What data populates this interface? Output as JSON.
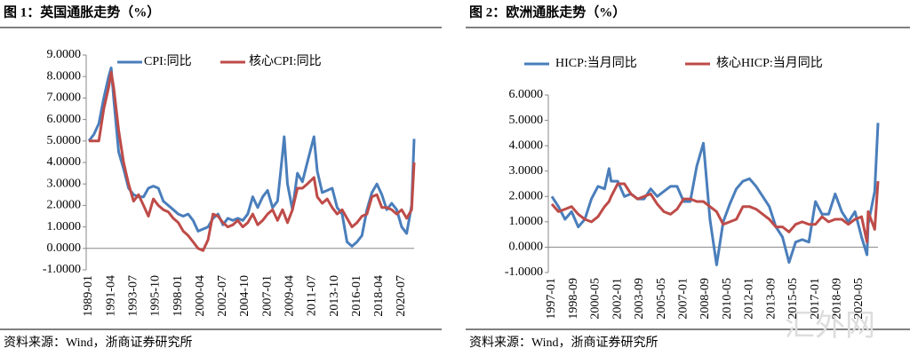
{
  "chart_data": [
    {
      "type": "line",
      "title": "图 1：英国通胀走势（%）",
      "source": "资料来源：Wind，浙商证券研究所",
      "x": [
        "1989-01",
        "1989-07",
        "1990-01",
        "1990-07",
        "1991-01",
        "1991-04",
        "1991-07",
        "1992-01",
        "1992-07",
        "1993-01",
        "1993-07",
        "1994-01",
        "1994-07",
        "1995-01",
        "1995-07",
        "1996-01",
        "1996-07",
        "1997-01",
        "1997-07",
        "1998-01",
        "1998-07",
        "1999-01",
        "1999-07",
        "2000-01",
        "2000-07",
        "2001-01",
        "2001-07",
        "2002-01",
        "2002-07",
        "2003-01",
        "2003-07",
        "2004-01",
        "2004-07",
        "2005-01",
        "2005-07",
        "2006-01",
        "2006-07",
        "2007-01",
        "2007-07",
        "2008-01",
        "2008-07",
        "2008-09",
        "2009-01",
        "2009-07",
        "2010-01",
        "2010-07",
        "2011-01",
        "2011-09",
        "2012-01",
        "2012-07",
        "2013-01",
        "2013-07",
        "2014-01",
        "2014-07",
        "2015-01",
        "2015-07",
        "2016-01",
        "2016-07",
        "2017-01",
        "2017-07",
        "2018-01",
        "2018-07",
        "2019-01",
        "2019-07",
        "2020-01",
        "2020-07",
        "2021-01",
        "2021-07",
        "2021-10"
      ],
      "series": [
        {
          "name": "CPI:同比",
          "color": "#4a7ebb",
          "values": [
            5.0,
            5.3,
            5.8,
            7.0,
            8.0,
            8.4,
            7.0,
            4.5,
            3.7,
            2.8,
            2.5,
            2.4,
            2.4,
            2.8,
            2.9,
            2.8,
            2.2,
            2.0,
            1.8,
            1.6,
            1.5,
            1.6,
            1.3,
            0.8,
            0.9,
            1.0,
            1.4,
            1.6,
            1.1,
            1.4,
            1.3,
            1.4,
            1.3,
            1.6,
            2.4,
            1.9,
            2.4,
            2.7,
            1.9,
            2.2,
            4.4,
            5.2,
            3.0,
            1.8,
            3.5,
            3.1,
            4.0,
            5.2,
            3.6,
            2.6,
            2.7,
            2.8,
            1.9,
            1.6,
            0.3,
            0.1,
            0.3,
            0.6,
            1.8,
            2.6,
            3.0,
            2.5,
            1.8,
            2.1,
            1.8,
            1.0,
            0.7,
            2.0,
            5.1
          ]
        },
        {
          "name": "核心CPI:同比",
          "color": "#be4b48",
          "values": [
            5.0,
            5.0,
            5.0,
            6.5,
            7.5,
            8.2,
            7.5,
            5.5,
            4.0,
            3.0,
            2.2,
            2.5,
            2.0,
            1.5,
            2.3,
            2.0,
            1.8,
            1.7,
            1.4,
            1.2,
            0.8,
            0.6,
            0.3,
            0.0,
            -0.1,
            0.4,
            1.6,
            1.5,
            1.2,
            1.0,
            1.1,
            1.3,
            1.0,
            1.2,
            1.6,
            1.1,
            1.3,
            1.6,
            1.8,
            1.3,
            1.8,
            1.6,
            1.2,
            1.8,
            2.8,
            2.8,
            3.0,
            3.3,
            2.4,
            2.1,
            2.3,
            1.9,
            1.6,
            1.8,
            1.4,
            1.0,
            1.2,
            1.5,
            1.6,
            2.4,
            2.5,
            1.9,
            1.9,
            1.8,
            1.6,
            1.8,
            1.4,
            1.8,
            4.0
          ]
        }
      ],
      "xticks": [
        "1989-01",
        "1991-04",
        "1993-07",
        "1995-10",
        "1998-01",
        "2000-04",
        "2002-07",
        "2004-10",
        "2007-01",
        "2009-04",
        "2011-07",
        "2013-10",
        "2016-01",
        "2018-04",
        "2020-07"
      ],
      "ylim": [
        -1,
        9
      ],
      "yticks": [
        {
          "value": -1,
          "label": "-1.0000"
        },
        {
          "value": 0,
          "label": "0.0000"
        },
        {
          "value": 1,
          "label": "1.0000"
        },
        {
          "value": 2,
          "label": "2.0000"
        },
        {
          "value": 3,
          "label": "3.0000"
        },
        {
          "value": 4,
          "label": "4.0000"
        },
        {
          "value": 5,
          "label": "5.0000"
        },
        {
          "value": 6,
          "label": "6.0000"
        },
        {
          "value": 7,
          "label": "7.0000"
        },
        {
          "value": 8,
          "label": "8.0000"
        },
        {
          "value": 9,
          "label": "9.0000"
        }
      ]
    },
    {
      "type": "line",
      "title": "图 2：欧洲通胀走势（%）",
      "source": "资料来源：Wind，浙商证券研究所",
      "x": [
        "1997-01",
        "1997-07",
        "1998-01",
        "1998-07",
        "1999-01",
        "1999-07",
        "2000-01",
        "2000-07",
        "2001-01",
        "2001-05",
        "2001-07",
        "2002-01",
        "2002-07",
        "2003-01",
        "2003-07",
        "2004-01",
        "2004-07",
        "2005-01",
        "2005-07",
        "2006-01",
        "2006-07",
        "2007-01",
        "2007-07",
        "2008-01",
        "2008-07",
        "2009-01",
        "2009-07",
        "2010-01",
        "2010-07",
        "2011-01",
        "2011-07",
        "2012-01",
        "2012-07",
        "2013-01",
        "2013-07",
        "2014-01",
        "2014-07",
        "2015-01",
        "2015-07",
        "2016-01",
        "2016-07",
        "2017-01",
        "2017-07",
        "2018-01",
        "2018-07",
        "2019-01",
        "2019-07",
        "2020-01",
        "2020-07",
        "2020-12",
        "2021-01",
        "2021-07",
        "2021-10"
      ],
      "series": [
        {
          "name": "HICP:当月同比",
          "color": "#4a7ebb",
          "values": [
            2.0,
            1.6,
            1.1,
            1.4,
            0.8,
            1.1,
            1.9,
            2.4,
            2.3,
            3.1,
            2.6,
            2.6,
            2.0,
            2.1,
            1.9,
            1.9,
            2.3,
            2.0,
            2.2,
            2.4,
            2.4,
            1.8,
            1.8,
            3.2,
            4.1,
            1.1,
            -0.7,
            1.0,
            1.7,
            2.3,
            2.6,
            2.7,
            2.4,
            2.0,
            1.6,
            0.8,
            0.4,
            -0.6,
            0.2,
            0.3,
            0.2,
            1.8,
            1.3,
            1.3,
            2.1,
            1.4,
            1.0,
            1.4,
            0.4,
            -0.3,
            0.9,
            2.2,
            4.9
          ]
        },
        {
          "name": "核心HICP:当月同比",
          "color": "#be4b48",
          "values": [
            1.7,
            1.4,
            1.5,
            1.6,
            1.3,
            1.1,
            1.0,
            1.2,
            1.6,
            1.8,
            2.0,
            2.5,
            2.5,
            2.1,
            1.9,
            2.0,
            2.1,
            1.7,
            1.4,
            1.3,
            1.5,
            1.9,
            1.9,
            1.8,
            1.8,
            1.6,
            1.4,
            0.9,
            1.0,
            1.1,
            1.6,
            1.6,
            1.5,
            1.3,
            1.1,
            0.8,
            0.8,
            0.6,
            0.9,
            1.0,
            0.9,
            0.9,
            1.2,
            1.0,
            1.1,
            1.1,
            0.9,
            1.1,
            1.2,
            0.2,
            1.4,
            0.7,
            2.6
          ]
        }
      ],
      "xticks": [
        "1997-01",
        "1998-09",
        "2000-05",
        "2002-01",
        "2003-09",
        "2005-05",
        "2007-01",
        "2008-09",
        "2010-05",
        "2012-01",
        "2013-09",
        "2015-05",
        "2017-01",
        "2018-09",
        "2020-05"
      ],
      "ylim": [
        -1,
        6
      ],
      "yticks": [
        {
          "value": -1,
          "label": "-1.0000"
        },
        {
          "value": 0,
          "label": "0.0000"
        },
        {
          "value": 1,
          "label": "1.0000"
        },
        {
          "value": 2,
          "label": "2.0000"
        },
        {
          "value": 3,
          "label": "3.0000"
        },
        {
          "value": 4,
          "label": "4.0000"
        },
        {
          "value": 5,
          "label": "5.0000"
        },
        {
          "value": 6,
          "label": "6.0000"
        }
      ]
    }
  ],
  "watermark": "汇外网"
}
